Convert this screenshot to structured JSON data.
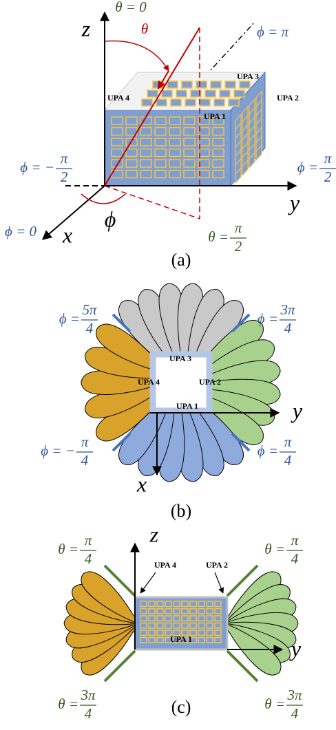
{
  "panels": [
    {
      "caption": "(a)",
      "labels": [
        {
          "text": "θ = 0"
        },
        {
          "text": "z"
        },
        {
          "text": "θ"
        },
        {
          "text": "ϕ = π"
        },
        {
          "text": "UPA 3"
        },
        {
          "text": "UPA 4"
        },
        {
          "text": "UPA 2"
        },
        {
          "text": "UPA 1"
        },
        {
          "lhs": "ϕ = −",
          "num": "π",
          "den": "2"
        },
        {
          "lhs": "ϕ = ",
          "num": "π",
          "den": "2"
        },
        {
          "text": "y"
        },
        {
          "text": "ϕ = 0"
        },
        {
          "text": "x"
        },
        {
          "text": "ϕ"
        },
        {
          "lhs": "θ = ",
          "num": "π",
          "den": "2"
        }
      ]
    },
    {
      "caption": "(b)",
      "labels": [
        {
          "lhs": "ϕ = ",
          "num": "5π",
          "den": "4"
        },
        {
          "lhs": "ϕ = ",
          "num": "3π",
          "den": "4"
        },
        {
          "text": "UPA 3"
        },
        {
          "text": "UPA 4"
        },
        {
          "text": "UPA 2"
        },
        {
          "text": "UPA 1"
        },
        {
          "text": "y"
        },
        {
          "text": "x"
        },
        {
          "lhs": "ϕ = −",
          "num": "π",
          "den": "4"
        },
        {
          "lhs": "ϕ = ",
          "num": "π",
          "den": "4"
        }
      ]
    },
    {
      "caption": "(c)",
      "labels": [
        {
          "text": "z"
        },
        {
          "lhs": "θ = ",
          "num": "π",
          "den": "4"
        },
        {
          "lhs": "θ = ",
          "num": "π",
          "den": "4"
        },
        {
          "text": "UPA 4"
        },
        {
          "text": "UPA 2"
        },
        {
          "text": "UPA 1"
        },
        {
          "text": "y"
        },
        {
          "lhs": "θ = ",
          "num": "3π",
          "den": "4"
        },
        {
          "lhs": "θ = ",
          "num": "3π",
          "den": "4"
        }
      ]
    }
  ]
}
